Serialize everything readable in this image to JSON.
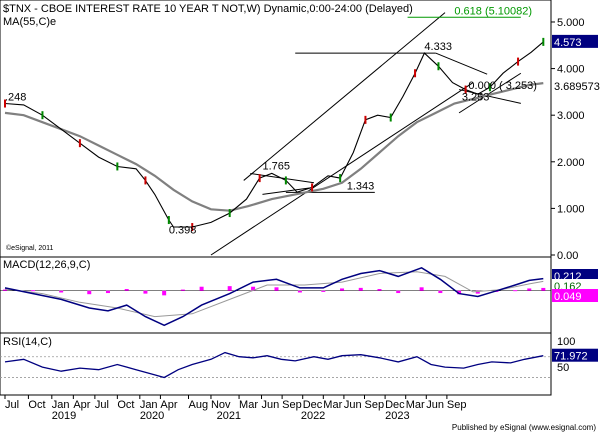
{
  "chart_data": {
    "type": "line",
    "title": "$TNX - CBOE INTEREST RATE 10 YEAR T NOT,W) Dynamic,0:00-24:00 (Delayed)",
    "ma_label": "MA(55,C)e",
    "watermark": "©eSignal, 2011",
    "price": {
      "ylim": [
        0,
        5.3
      ],
      "ticks": [
        {
          "v": 0.0,
          "label": "0.00"
        },
        {
          "v": 1.0,
          "label": "1.000"
        },
        {
          "v": 2.0,
          "label": "2.000"
        },
        {
          "v": 3.0,
          "label": "3.000"
        },
        {
          "v": 4.0,
          "label": "4.000"
        },
        {
          "v": 5.0,
          "label": "5.000"
        }
      ],
      "last_value": {
        "v": 4.573,
        "label": "4.573"
      },
      "ma_value": {
        "v": 3.689573,
        "label": "3.689573"
      },
      "series": [
        {
          "name": "price",
          "color": "#000000",
          "points": [
            [
              0,
              3.25
            ],
            [
              20,
              3.22
            ],
            [
              40,
              3.0
            ],
            [
              60,
              2.7
            ],
            [
              80,
              2.4
            ],
            [
              100,
              2.1
            ],
            [
              120,
              1.9
            ],
            [
              140,
              1.85
            ],
            [
              150,
              1.6
            ],
            [
              160,
              1.3
            ],
            [
              175,
              0.75
            ],
            [
              180,
              0.6
            ],
            [
              200,
              0.6
            ],
            [
              220,
              0.7
            ],
            [
              240,
              0.9
            ],
            [
              258,
              1.2
            ],
            [
              272,
              1.65
            ],
            [
              285,
              1.75
            ],
            [
              300,
              1.6
            ],
            [
              312,
              1.35
            ],
            [
              328,
              1.45
            ],
            [
              345,
              1.7
            ],
            [
              358,
              1.65
            ],
            [
              372,
              2.2
            ],
            [
              385,
              2.9
            ],
            [
              398,
              3.0
            ],
            [
              412,
              2.95
            ],
            [
              425,
              3.4
            ],
            [
              438,
              3.9
            ],
            [
              448,
              4.333
            ],
            [
              463,
              4.05
            ],
            [
              478,
              3.7
            ],
            [
              492,
              3.55
            ],
            [
              505,
              3.45
            ],
            [
              518,
              3.6
            ],
            [
              532,
              3.9
            ],
            [
              548,
              4.15
            ],
            [
              562,
              4.35
            ],
            [
              575,
              4.573
            ]
          ]
        },
        {
          "name": "MA(55,C)e",
          "color": "#808080",
          "points": [
            [
              0,
              3.05
            ],
            [
              20,
              3.0
            ],
            [
              40,
              2.85
            ],
            [
              60,
              2.7
            ],
            [
              80,
              2.55
            ],
            [
              100,
              2.35
            ],
            [
              120,
              2.15
            ],
            [
              140,
              1.95
            ],
            [
              160,
              1.7
            ],
            [
              180,
              1.4
            ],
            [
              200,
              1.15
            ],
            [
              220,
              0.98
            ],
            [
              240,
              0.95
            ],
            [
              260,
              1.05
            ],
            [
              285,
              1.2
            ],
            [
              310,
              1.3
            ],
            [
              340,
              1.42
            ],
            [
              360,
              1.55
            ],
            [
              380,
              1.85
            ],
            [
              400,
              2.2
            ],
            [
              420,
              2.55
            ],
            [
              440,
              2.85
            ],
            [
              460,
              3.05
            ],
            [
              480,
              3.25
            ],
            [
              500,
              3.35
            ],
            [
              520,
              3.45
            ],
            [
              540,
              3.55
            ],
            [
              560,
              3.65
            ],
            [
              575,
              3.689573
            ]
          ]
        }
      ],
      "annotations": [
        {
          "text": "0.618 (5.10082)",
          "x": 480,
          "y": 5.1008,
          "color": "#009900"
        },
        {
          "text": "4.333",
          "x": 448,
          "y": 4.333
        },
        {
          "text": "1.765",
          "x": 275,
          "y": 1.765
        },
        {
          "text": "1.343",
          "x": 365,
          "y": 1.343
        },
        {
          "text": "0.398",
          "x": 175,
          "y": 0.398
        },
        {
          "text": "3.253",
          "x": 488,
          "y": 3.253
        },
        {
          "text": "0.000 ( 3.253)",
          "x": 495,
          "y": 3.5
        },
        {
          "text": ".248",
          "x": 0,
          "y": 3.248
        }
      ]
    },
    "macd": {
      "label": "MACD(12,26,9,C)",
      "ylim": [
        -0.7,
        0.5
      ],
      "values": [
        {
          "v": 0.212,
          "label": "0.212"
        },
        {
          "v": 0.162,
          "label": "0.162"
        },
        {
          "v": 0.049,
          "label": "0.049"
        }
      ],
      "series": [
        {
          "name": "macd",
          "color": "#000080",
          "points": [
            [
              0,
              0.05
            ],
            [
              30,
              -0.05
            ],
            [
              60,
              -0.15
            ],
            [
              90,
              -0.3
            ],
            [
              110,
              -0.35
            ],
            [
              130,
              -0.25
            ],
            [
              150,
              -0.45
            ],
            [
              170,
              -0.6
            ],
            [
              190,
              -0.45
            ],
            [
              210,
              -0.25
            ],
            [
              240,
              -0.05
            ],
            [
              265,
              0.15
            ],
            [
              290,
              0.2
            ],
            [
              315,
              0.05
            ],
            [
              340,
              0.05
            ],
            [
              360,
              0.2
            ],
            [
              380,
              0.3
            ],
            [
              400,
              0.35
            ],
            [
              420,
              0.25
            ],
            [
              445,
              0.4
            ],
            [
              465,
              0.2
            ],
            [
              485,
              -0.05
            ],
            [
              505,
              -0.1
            ],
            [
              525,
              0.0
            ],
            [
              545,
              0.1
            ],
            [
              560,
              0.18
            ],
            [
              575,
              0.212
            ]
          ]
        },
        {
          "name": "signal",
          "color": "#999999",
          "points": [
            [
              0,
              0.03
            ],
            [
              40,
              -0.05
            ],
            [
              80,
              -0.2
            ],
            [
              120,
              -0.3
            ],
            [
              160,
              -0.45
            ],
            [
              200,
              -0.4
            ],
            [
              240,
              -0.15
            ],
            [
              280,
              0.1
            ],
            [
              320,
              0.1
            ],
            [
              360,
              0.15
            ],
            [
              400,
              0.3
            ],
            [
              440,
              0.33
            ],
            [
              470,
              0.25
            ],
            [
              500,
              -0.02
            ],
            [
              530,
              0.02
            ],
            [
              560,
              0.12
            ],
            [
              575,
              0.162
            ]
          ]
        }
      ],
      "histogram": {
        "color": "#ff00ff",
        "bars": [
          [
            0,
            0.02
          ],
          [
            30,
            0.01
          ],
          [
            60,
            -0.03
          ],
          [
            90,
            -0.06
          ],
          [
            110,
            -0.04
          ],
          [
            130,
            0.03
          ],
          [
            150,
            -0.05
          ],
          [
            170,
            -0.08
          ],
          [
            190,
            0.02
          ],
          [
            210,
            0.07
          ],
          [
            240,
            0.08
          ],
          [
            265,
            0.07
          ],
          [
            290,
            0.06
          ],
          [
            315,
            -0.03
          ],
          [
            340,
            -0.02
          ],
          [
            360,
            0.04
          ],
          [
            380,
            0.05
          ],
          [
            400,
            0.03
          ],
          [
            420,
            -0.04
          ],
          [
            445,
            0.06
          ],
          [
            465,
            -0.04
          ],
          [
            485,
            -0.06
          ],
          [
            505,
            -0.05
          ],
          [
            525,
            -0.02
          ],
          [
            545,
            0.01
          ],
          [
            560,
            0.04
          ],
          [
            575,
            0.049
          ]
        ]
      }
    },
    "rsi": {
      "label": "RSI(14,C)",
      "ylim": [
        0,
        110
      ],
      "ticks": [
        {
          "v": 100,
          "label": "100"
        },
        {
          "v": 50,
          "label": "50"
        }
      ],
      "value": {
        "v": 71.972,
        "label": "71.972"
      },
      "series": [
        {
          "name": "rsi",
          "color": "#000080",
          "points": [
            [
              0,
              60
            ],
            [
              20,
              65
            ],
            [
              40,
              50
            ],
            [
              60,
              42
            ],
            [
              80,
              48
            ],
            [
              100,
              45
            ],
            [
              120,
              55
            ],
            [
              140,
              45
            ],
            [
              160,
              35
            ],
            [
              170,
              30
            ],
            [
              185,
              45
            ],
            [
              200,
              55
            ],
            [
              220,
              65
            ],
            [
              235,
              78
            ],
            [
              250,
              70
            ],
            [
              265,
              68
            ],
            [
              280,
              72
            ],
            [
              295,
              65
            ],
            [
              310,
              62
            ],
            [
              330,
              70
            ],
            [
              345,
              65
            ],
            [
              360,
              72
            ],
            [
              380,
              74
            ],
            [
              400,
              68
            ],
            [
              420,
              60
            ],
            [
              440,
              70
            ],
            [
              455,
              55
            ],
            [
              470,
              50
            ],
            [
              490,
              48
            ],
            [
              505,
              55
            ],
            [
              520,
              60
            ],
            [
              540,
              58
            ],
            [
              555,
              65
            ],
            [
              575,
              71.972
            ]
          ]
        }
      ]
    },
    "x_axis": {
      "months": [
        {
          "label": "Jul",
          "x": 0
        },
        {
          "label": "Oct",
          "x": 25
        },
        {
          "label": "Jan",
          "x": 50
        },
        {
          "label": "Apr",
          "x": 73
        },
        {
          "label": "Jul",
          "x": 96
        },
        {
          "label": "Oct",
          "x": 120
        },
        {
          "label": "Jan",
          "x": 144
        },
        {
          "label": "Apr",
          "x": 166
        },
        {
          "label": "Aug",
          "x": 196
        },
        {
          "label": "Nov",
          "x": 220
        },
        {
          "label": "Mar",
          "x": 250
        },
        {
          "label": "Jun",
          "x": 274
        },
        {
          "label": "Sep",
          "x": 296
        },
        {
          "label": "Dec",
          "x": 318
        },
        {
          "label": "Mar",
          "x": 340
        },
        {
          "label": "Jun",
          "x": 362
        },
        {
          "label": "Sep",
          "x": 384
        },
        {
          "label": "Dec",
          "x": 406
        },
        {
          "label": "Mar",
          "x": 428
        },
        {
          "label": "Jun",
          "x": 450
        },
        {
          "label": "Sep",
          "x": 472
        }
      ],
      "years": [
        {
          "label": "2019",
          "x": 50
        },
        {
          "label": "2020",
          "x": 144
        },
        {
          "label": "2021",
          "x": 226
        },
        {
          "label": "2022",
          "x": 316
        },
        {
          "label": "2023",
          "x": 406
        }
      ]
    },
    "footer": "Published by eSignal (www.esignal.com)"
  }
}
